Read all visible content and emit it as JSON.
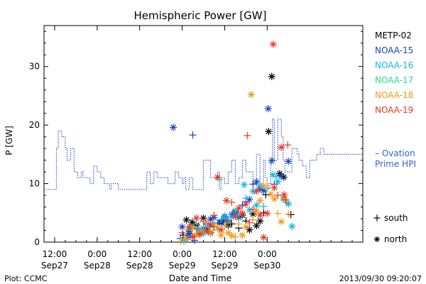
{
  "chart_data": {
    "type": "scatter",
    "title": "Hemispheric Power [GW]",
    "xlabel": "Date and Time",
    "ylabel": "P [GW]",
    "x_unit": "hours",
    "xlim": [
      -15,
      75
    ],
    "ylim": [
      0,
      37
    ],
    "y_ticks": [
      0,
      10,
      20,
      30
    ],
    "x_ticks": [
      {
        "x": -12,
        "line1": "12:00",
        "line2": "Sep27"
      },
      {
        "x": 0,
        "line1": "0:00",
        "line2": "Sep28"
      },
      {
        "x": 12,
        "line1": "12:00",
        "line2": "Sep28"
      },
      {
        "x": 24,
        "line1": "0:00",
        "line2": "Sep29"
      },
      {
        "x": 36,
        "line1": "12:00",
        "line2": "Sep29"
      },
      {
        "x": 48,
        "line1": "0:00",
        "line2": "Sep30"
      }
    ],
    "ovation": {
      "name": "Ovation Prime HPI",
      "label_line1": "– Ovation",
      "label_line2": "Prime HPI",
      "color": "#3a5fcd",
      "x": [
        -15,
        -11.5,
        -11,
        -10,
        -9,
        -8.5,
        -7.5,
        -6.5,
        -5.5,
        -4.5,
        -4,
        -3.5,
        -2,
        -1,
        0,
        1,
        2,
        3.5,
        4,
        6,
        8,
        9,
        10,
        14,
        15,
        16,
        17,
        18,
        20,
        22,
        23,
        24,
        24.5,
        25,
        26,
        27,
        29,
        30,
        32,
        34,
        34.5,
        35,
        36,
        37,
        38,
        39,
        40,
        41,
        42,
        44,
        45,
        46,
        47,
        47.5,
        48,
        48.5,
        49,
        49.5,
        50,
        51,
        52,
        52.5,
        53,
        55,
        56.5,
        57,
        58,
        59,
        60,
        62,
        63,
        64,
        65
      ],
      "y": [
        9,
        16,
        19,
        18,
        16,
        14,
        16,
        12,
        11,
        12,
        11,
        11,
        10,
        13,
        12,
        11,
        10,
        9,
        10,
        9,
        9,
        9,
        9,
        12,
        10,
        12,
        11,
        11,
        10,
        12,
        11,
        10,
        11,
        9,
        11,
        9,
        9,
        14,
        11,
        12,
        9,
        11,
        10,
        12,
        14,
        10,
        11,
        14,
        12,
        10,
        15,
        10,
        14,
        11,
        9,
        10,
        14,
        21,
        14,
        21,
        18,
        14,
        12,
        16,
        15,
        14,
        13,
        11,
        14,
        15,
        16,
        15,
        15
      ]
    },
    "series": [
      {
        "name": "METP-02",
        "color": "#000000",
        "points": [
          [
            48.4,
            18.9
          ],
          [
            49.3,
            28.3
          ],
          [
            47.6,
            8.1
          ],
          [
            51.5,
            11.7
          ],
          [
            52.7,
            11.1
          ],
          [
            54.7,
            4.7
          ],
          [
            36,
            3.8
          ],
          [
            39,
            5.2
          ],
          [
            42,
            3.6
          ],
          [
            44,
            4.8
          ],
          [
            46,
            3.6
          ],
          [
            33,
            2.6
          ],
          [
            30,
            4.1
          ],
          [
            28,
            2.9
          ],
          [
            29,
            1.5
          ],
          [
            25.2,
            3.8
          ],
          [
            26,
            1.9
          ],
          [
            24.3,
            1.2
          ],
          [
            31,
            2.2
          ],
          [
            37,
            2.9
          ],
          [
            40,
            2.4
          ],
          [
            43,
            2.1
          ],
          [
            45,
            2.8
          ],
          [
            47,
            5
          ],
          [
            35,
            3.3
          ],
          [
            41,
            4.6
          ],
          [
            38,
            3.1
          ],
          [
            26.8,
            3.4
          ],
          [
            32,
            1.6
          ]
        ]
      },
      {
        "name": "NOAA-15",
        "color": "#1a3fc8",
        "points": [
          [
            21.5,
            19.6
          ],
          [
            27,
            18.3
          ],
          [
            48.3,
            22.8
          ],
          [
            49.3,
            13.9
          ],
          [
            44,
            9.9
          ],
          [
            45,
            10.3
          ],
          [
            43,
            7.3
          ],
          [
            41,
            6.3
          ],
          [
            38,
            4.7
          ],
          [
            36,
            4.4
          ],
          [
            34,
            3.2
          ],
          [
            32,
            3.9
          ],
          [
            30,
            2.3
          ],
          [
            28,
            2.3
          ],
          [
            26,
            1.4
          ],
          [
            24,
            2.6
          ],
          [
            23.5,
            0.6
          ],
          [
            25.5,
            0.8
          ],
          [
            29,
            1.8
          ],
          [
            31,
            3.1
          ],
          [
            33,
            4.2
          ],
          [
            35,
            3.5
          ],
          [
            37,
            3.7
          ],
          [
            39,
            5
          ],
          [
            40,
            4.2
          ],
          [
            42,
            6.9
          ],
          [
            46,
            9.1
          ],
          [
            47,
            8.8
          ],
          [
            50,
            9.9
          ],
          [
            52,
            11.3
          ],
          [
            54,
            13.8
          ],
          [
            27.5,
            0.3
          ]
        ]
      },
      {
        "name": "NOAA-16",
        "color": "#11b7dc",
        "points": [
          [
            34.5,
            10.7
          ],
          [
            41.5,
            9.8
          ],
          [
            49.6,
            11.5
          ],
          [
            50.5,
            11.2
          ],
          [
            54,
            6.5
          ],
          [
            55,
            2.7
          ],
          [
            47,
            6.1
          ],
          [
            45,
            6.3
          ],
          [
            43,
            5.5
          ],
          [
            40,
            4.5
          ],
          [
            38,
            4.3
          ],
          [
            36,
            4.1
          ],
          [
            33,
            3.3
          ],
          [
            31,
            2.6
          ],
          [
            29,
            2
          ],
          [
            27,
            1
          ],
          [
            25,
            0.6
          ],
          [
            26,
            2.2
          ],
          [
            28,
            3.1
          ],
          [
            30,
            1.5
          ],
          [
            32,
            2.8
          ],
          [
            35,
            3.9
          ],
          [
            37,
            3.5
          ],
          [
            39,
            5.3
          ],
          [
            42,
            7.5
          ],
          [
            44,
            8.7
          ],
          [
            46,
            9.6
          ],
          [
            48,
            9.2
          ],
          [
            51,
            10.3
          ],
          [
            52.5,
            7.4
          ],
          [
            53.5,
            6.8
          ],
          [
            24.5,
            0.2
          ]
        ]
      },
      {
        "name": "NOAA-17",
        "color": "#22dd88",
        "points": []
      },
      {
        "name": "NOAA-18",
        "color": "#f09a1a",
        "points": [
          [
            43.5,
            25.2
          ],
          [
            23.5,
            0.1
          ],
          [
            25,
            0.6
          ],
          [
            28,
            1.3
          ],
          [
            30,
            2.1
          ],
          [
            32,
            1.7
          ],
          [
            34,
            2.3
          ],
          [
            36,
            2.8
          ],
          [
            37,
            1.6
          ],
          [
            38,
            1.1
          ],
          [
            39,
            0.9
          ],
          [
            41,
            1.2
          ],
          [
            42,
            2.6
          ],
          [
            44,
            3.8
          ],
          [
            46,
            7.1
          ],
          [
            47,
            9.6
          ],
          [
            48,
            9.6
          ],
          [
            49,
            8.2
          ],
          [
            50,
            7.4
          ],
          [
            51,
            4.9
          ],
          [
            52,
            3.5
          ],
          [
            53,
            7.3
          ],
          [
            54,
            4.8
          ],
          [
            27,
            2.4
          ],
          [
            29,
            1.7
          ],
          [
            31,
            3.3
          ],
          [
            33,
            2.9
          ],
          [
            35,
            1.2
          ],
          [
            40,
            3.1
          ],
          [
            45,
            5.3
          ]
        ]
      },
      {
        "name": "NOAA-19",
        "color": "#e8371f",
        "points": [
          [
            42.4,
            18.2
          ],
          [
            49.7,
            33.8
          ],
          [
            52,
            16.2
          ],
          [
            53.8,
            16.6
          ],
          [
            36.5,
            7.1
          ],
          [
            34,
            11.1
          ],
          [
            38,
            6.8
          ],
          [
            40,
            5.8
          ],
          [
            42,
            6.5
          ],
          [
            44,
            5.6
          ],
          [
            46,
            4.6
          ],
          [
            48,
            4.9
          ],
          [
            51,
            8
          ],
          [
            52.8,
            8.1
          ],
          [
            47,
            0.8
          ],
          [
            24,
            1.6
          ],
          [
            26,
            2.6
          ],
          [
            28,
            4.1
          ],
          [
            30,
            3.5
          ],
          [
            32,
            2.9
          ],
          [
            35,
            2.1
          ],
          [
            37,
            3.5
          ],
          [
            39,
            4.4
          ],
          [
            41,
            4.9
          ],
          [
            43,
            3.3
          ],
          [
            45,
            8.7
          ],
          [
            50,
            9.3
          ],
          [
            53.2,
            7.2
          ],
          [
            29,
            1.3
          ],
          [
            31,
            1.9
          ],
          [
            33,
            4.6
          ],
          [
            27,
            0.9
          ]
        ]
      }
    ],
    "marker_key": [
      {
        "symbol": "+",
        "label": "south"
      },
      {
        "symbol": "*",
        "label": "north"
      }
    ]
  },
  "footer": {
    "plot_credit": "Plot: CCMC",
    "timestamp": "2013/09/30 09:20:07"
  }
}
